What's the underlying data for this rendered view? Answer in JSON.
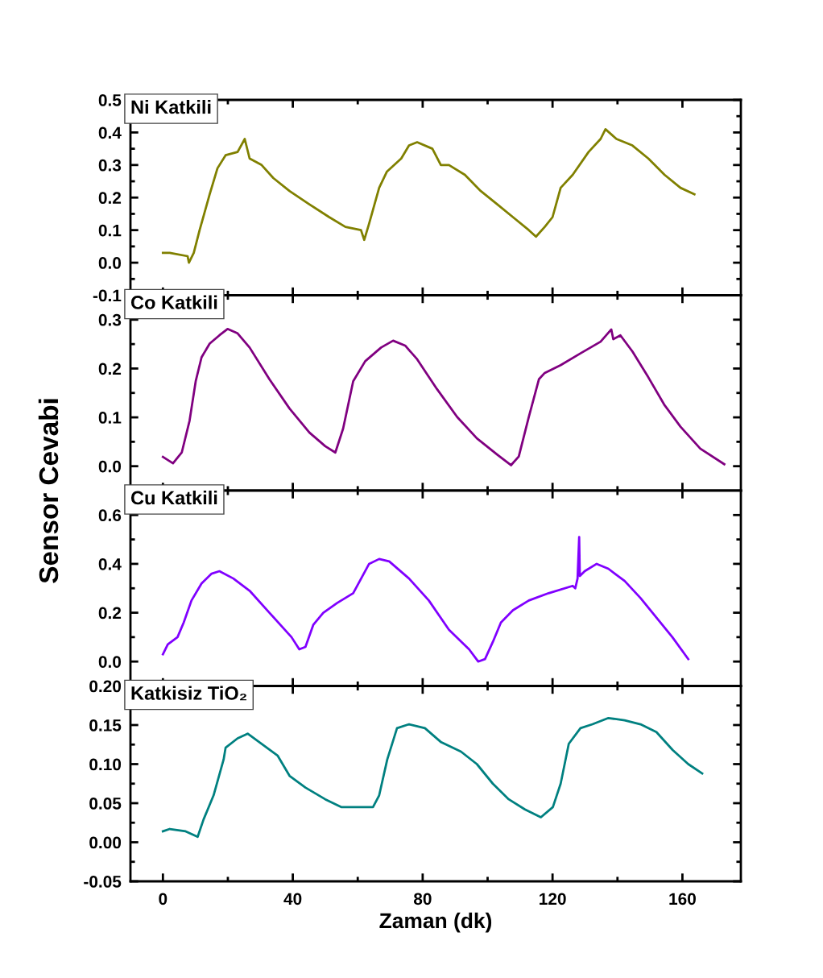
{
  "chart_data": [
    {
      "type": "line",
      "title": "Ni Katkili",
      "tick_labels": "y",
      "xlim": [
        -10,
        178
      ],
      "ylim": [
        -0.1,
        0.5
      ],
      "xticks": [
        0,
        {
          "value": 20,
          "label": null
        },
        40,
        {
          "value": 60,
          "label": null
        },
        80,
        {
          "value": 100,
          "label": null
        },
        120,
        {
          "value": 140,
          "label": null
        },
        160
      ],
      "yticks": [
        -0.1,
        {
          "value": -0.05,
          "label": null
        },
        {
          "value": 0,
          "label": "0.0"
        },
        {
          "value": 0.05,
          "label": null
        },
        0.1,
        {
          "value": 0.15,
          "label": null
        },
        0.2,
        {
          "value": 0.25,
          "label": null
        },
        0.3,
        {
          "value": 0.35,
          "label": null
        },
        0.4,
        {
          "value": 0.45,
          "label": null
        },
        0.5
      ],
      "series": [
        {
          "color": "#808000",
          "x": [
            0,
            2.1,
            7.6,
            8,
            9.5,
            11.3,
            14.4,
            16.8,
            19.3,
            23,
            25.2,
            26.7,
            30.4,
            34,
            39,
            45,
            51.2,
            56.2,
            61,
            62,
            63.5,
            66.6,
            69,
            73.4,
            75.8,
            78.3,
            83,
            85.6,
            88.1,
            93,
            97.9,
            102.9,
            107.8,
            112.7,
            114.9,
            117.6,
            120,
            122.5,
            126.2,
            131.1,
            134.8,
            136.3,
            139.7,
            144.6,
            149.5,
            154.5,
            159.4,
            163.7
          ],
          "values": [
            0.03,
            0.03,
            0.02,
            0.0,
            0.03,
            0.1,
            0.21,
            0.29,
            0.33,
            0.34,
            0.38,
            0.32,
            0.3,
            0.26,
            0.22,
            0.18,
            0.14,
            0.11,
            0.1,
            0.07,
            0.12,
            0.23,
            0.28,
            0.32,
            0.36,
            0.37,
            0.35,
            0.3,
            0.3,
            0.27,
            0.22,
            0.18,
            0.14,
            0.1,
            0.08,
            0.11,
            0.14,
            0.23,
            0.27,
            0.34,
            0.38,
            0.41,
            0.38,
            0.36,
            0.32,
            0.27,
            0.23,
            0.21
          ]
        }
      ]
    },
    {
      "type": "line",
      "title": "Co Katkili",
      "ylabel": "Sensor Cevabi",
      "tick_labels": "y",
      "xlim": [
        -10,
        178
      ],
      "ylim": [
        -0.05,
        0.35
      ],
      "xticks": [
        0,
        {
          "value": 20,
          "label": null
        },
        40,
        {
          "value": 60,
          "label": null
        },
        80,
        {
          "value": 100,
          "label": null
        },
        120,
        {
          "value": 140,
          "label": null
        },
        160
      ],
      "yticks": [
        {
          "value": 0,
          "label": "0.0"
        },
        {
          "value": 0.05,
          "label": null
        },
        0.1,
        {
          "value": 0.15,
          "label": null
        },
        0.2,
        {
          "value": 0.25,
          "label": null
        },
        0.3
      ],
      "series": [
        {
          "color": "#800080",
          "x": [
            0,
            3.1,
            5.8,
            8.2,
            10.1,
            11.9,
            14.4,
            17.4,
            19.9,
            23,
            26.7,
            32.8,
            39,
            45.1,
            50,
            53.1,
            55.5,
            58.6,
            62.3,
            67.2,
            70.9,
            74.6,
            78.3,
            84.4,
            90.6,
            96.7,
            102.9,
            107.2,
            109.6,
            112.7,
            115.8,
            117.6,
            122.5,
            128.6,
            134.8,
            138.1,
            138.7,
            140.9,
            144.6,
            149.5,
            154.4,
            159.4,
            165.5,
            172.9
          ],
          "values": [
            0.019,
            0.006,
            0.028,
            0.093,
            0.174,
            0.223,
            0.251,
            0.268,
            0.281,
            0.272,
            0.243,
            0.178,
            0.118,
            0.069,
            0.041,
            0.028,
            0.077,
            0.174,
            0.215,
            0.243,
            0.257,
            0.247,
            0.219,
            0.158,
            0.101,
            0.057,
            0.024,
            0.002,
            0.02,
            0.101,
            0.178,
            0.191,
            0.207,
            0.231,
            0.255,
            0.28,
            0.26,
            0.268,
            0.235,
            0.182,
            0.126,
            0.081,
            0.036,
            0.004
          ]
        }
      ]
    },
    {
      "type": "line",
      "title": "Cu Katkili",
      "tick_labels": "y",
      "xlim": [
        -10,
        178
      ],
      "ylim": [
        -0.1,
        0.7
      ],
      "xticks": [
        0,
        {
          "value": 20,
          "label": null
        },
        40,
        {
          "value": 60,
          "label": null
        },
        80,
        {
          "value": 100,
          "label": null
        },
        120,
        {
          "value": 140,
          "label": null
        },
        160
      ],
      "yticks": [
        {
          "value": 0,
          "label": "0.0"
        },
        {
          "value": 0.1,
          "label": null
        },
        0.2,
        {
          "value": 0.3,
          "label": null
        },
        0.4,
        {
          "value": 0.5,
          "label": null
        },
        0.6
      ],
      "series": [
        {
          "color": "#8000ff",
          "x": [
            0,
            1.5,
            4.5,
            6.4,
            8.8,
            11.9,
            15,
            17.4,
            21.7,
            26.7,
            32.8,
            39.6,
            42,
            43.9,
            46.3,
            49.4,
            53.7,
            58.6,
            63.5,
            66.6,
            69.7,
            75.8,
            81.9,
            88.1,
            94.3,
            97.1,
            99.2,
            101.6,
            104.1,
            107.8,
            112.7,
            118.8,
            126.2,
            127,
            127.7,
            128.2,
            128.4,
            129.9,
            133.6,
            137.2,
            142.2,
            147.1,
            152,
            156.9,
            161.8
          ],
          "values": [
            0.03,
            0.07,
            0.1,
            0.16,
            0.25,
            0.32,
            0.36,
            0.37,
            0.34,
            0.29,
            0.2,
            0.1,
            0.05,
            0.06,
            0.15,
            0.2,
            0.24,
            0.28,
            0.4,
            0.42,
            0.41,
            0.34,
            0.25,
            0.13,
            0.05,
            0.0,
            0.01,
            0.08,
            0.16,
            0.21,
            0.25,
            0.28,
            0.31,
            0.3,
            0.34,
            0.51,
            0.35,
            0.37,
            0.4,
            0.38,
            0.33,
            0.26,
            0.18,
            0.1,
            0.01
          ]
        }
      ]
    },
    {
      "type": "line",
      "title": "Katkisiz TiO₂",
      "xlabel": "Zaman (dk)",
      "xlim": [
        -10,
        178
      ],
      "ylim": [
        -0.05,
        0.2
      ],
      "xticks": [
        0,
        {
          "value": 20,
          "label": null
        },
        40,
        {
          "value": 60,
          "label": null
        },
        80,
        {
          "value": 100,
          "label": null
        },
        120,
        {
          "value": 140,
          "label": null
        },
        160
      ],
      "yticks": [
        -0.05,
        {
          "value": -0.025,
          "label": null
        },
        {
          "value": 0.0,
          "label": "0.00"
        },
        {
          "value": 0.025,
          "label": null
        },
        0.05,
        {
          "value": 0.075,
          "label": null
        },
        {
          "value": 0.1,
          "label": "0.10"
        },
        {
          "value": 0.125,
          "label": null
        },
        0.15,
        {
          "value": 0.175,
          "label": null
        },
        {
          "value": 0.2,
          "label": "0.20"
        }
      ],
      "series": [
        {
          "color": "#008080",
          "x": [
            0,
            2.1,
            7,
            10.7,
            12.5,
            15.6,
            18.7,
            19.3,
            23,
            26.1,
            30.4,
            35.3,
            39,
            43.9,
            50,
            54.9,
            59.8,
            64.7,
            66.6,
            69.1,
            72.1,
            75.8,
            80.7,
            85.7,
            91.8,
            96.7,
            101.6,
            106.5,
            111.5,
            116.4,
            120.1,
            122.5,
            125,
            128.6,
            132.3,
            137.2,
            142.2,
            147.1,
            152,
            157,
            161.8,
            166.1
          ],
          "values": [
            0.014,
            0.017,
            0.014,
            0.007,
            0.029,
            0.06,
            0.106,
            0.121,
            0.133,
            0.139,
            0.126,
            0.111,
            0.085,
            0.07,
            0.055,
            0.045,
            0.045,
            0.045,
            0.06,
            0.106,
            0.146,
            0.151,
            0.146,
            0.128,
            0.116,
            0.1,
            0.075,
            0.055,
            0.042,
            0.032,
            0.045,
            0.075,
            0.126,
            0.146,
            0.151,
            0.159,
            0.156,
            0.151,
            0.141,
            0.118,
            0.1,
            0.088
          ]
        }
      ]
    }
  ]
}
